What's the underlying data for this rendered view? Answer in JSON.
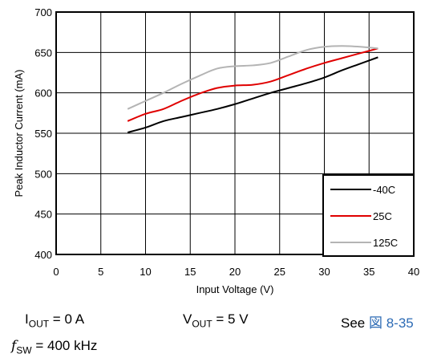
{
  "chart_data": {
    "type": "line",
    "xlabel": "Input Voltage (V)",
    "ylabel": "Peak Inductor Current (mA)",
    "xlim": [
      0,
      40
    ],
    "ylim": [
      400,
      700
    ],
    "xticks": [
      0,
      5,
      10,
      15,
      20,
      25,
      30,
      35,
      40
    ],
    "yticks": [
      400,
      450,
      500,
      550,
      600,
      650,
      700
    ],
    "grid": true,
    "legend_position": "bottom-right",
    "series": [
      {
        "name": "-40C",
        "color": "#000000",
        "x": [
          8,
          10,
          12,
          14,
          16,
          18,
          20,
          22,
          24,
          26,
          28,
          30,
          32,
          34,
          36
        ],
        "y": [
          551,
          557,
          565,
          570,
          575,
          580,
          586,
          593,
          600,
          606,
          612,
          619,
          628,
          636,
          644
        ]
      },
      {
        "name": "25C",
        "color": "#e00000",
        "x": [
          8,
          10,
          12,
          14,
          16,
          18,
          20,
          22,
          24,
          26,
          28,
          30,
          32,
          34,
          36
        ],
        "y": [
          565,
          574,
          580,
          590,
          599,
          606,
          609,
          610,
          614,
          622,
          630,
          637,
          643,
          649,
          655
        ]
      },
      {
        "name": "125C",
        "color": "#b4b4b4",
        "x": [
          8,
          10,
          12,
          14,
          16,
          18,
          20,
          22,
          24,
          26,
          28,
          30,
          32,
          34,
          36
        ],
        "y": [
          580,
          590,
          600,
          611,
          621,
          630,
          633,
          634,
          637,
          645,
          653,
          657,
          658,
          657,
          655
        ]
      }
    ]
  },
  "conditions": {
    "iout": {
      "prefix": "I",
      "sub": "OUT",
      "suffix": " = 0 A"
    },
    "vout": {
      "prefix": "V",
      "sub": "OUT",
      "suffix": " = 5 V"
    },
    "see": {
      "text": "See ",
      "link": "図 8-35"
    },
    "fsw": {
      "prefix": "f",
      "sub": "SW",
      "suffix": " = 400 kHz"
    }
  }
}
